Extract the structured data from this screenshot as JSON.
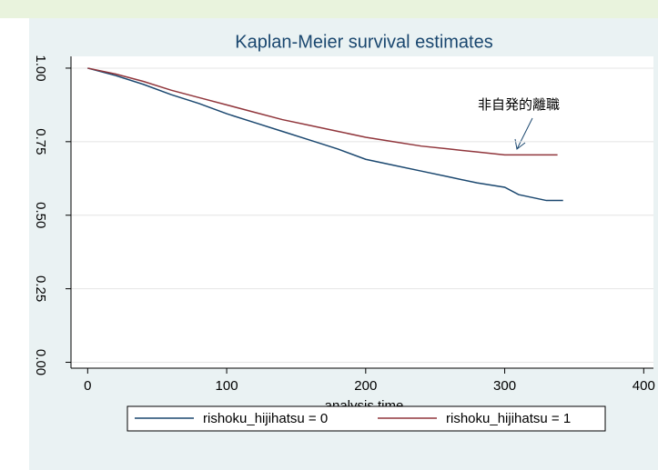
{
  "chart_data": {
    "type": "line",
    "title": "Kaplan-Meier survival estimates",
    "x_label": "analysis time",
    "annotation": "非自発的離職",
    "xlim": [
      -12,
      407
    ],
    "xticks": [
      0,
      100,
      200,
      300,
      400
    ],
    "ylim": [
      -0.02,
      1.04
    ],
    "yticks": [
      {
        "value": 0,
        "label": "0.00"
      },
      {
        "value": 0.25,
        "label": "0.25"
      },
      {
        "value": 0.5,
        "label": "0.50"
      },
      {
        "value": 0.75,
        "label": "0.75"
      },
      {
        "value": 1,
        "label": "1.00"
      }
    ],
    "grid": true,
    "legend": "bottom",
    "series": [
      {
        "name": "rishoku_hijihatsu = 0",
        "color": "#1a476f",
        "x": [
          0,
          20,
          40,
          60,
          80,
          100,
          120,
          140,
          160,
          180,
          200,
          220,
          240,
          260,
          280,
          300,
          310,
          320,
          330,
          342
        ],
        "values": [
          1.0,
          0.975,
          0.945,
          0.91,
          0.88,
          0.845,
          0.815,
          0.785,
          0.755,
          0.725,
          0.69,
          0.67,
          0.65,
          0.63,
          0.61,
          0.595,
          0.57,
          0.56,
          0.55,
          0.55
        ]
      },
      {
        "name": "rishoku_hijihatsu = 1",
        "color": "#90353b",
        "x": [
          0,
          20,
          40,
          60,
          80,
          100,
          120,
          140,
          160,
          180,
          200,
          220,
          240,
          260,
          280,
          300,
          320,
          338
        ],
        "values": [
          1.0,
          0.98,
          0.955,
          0.925,
          0.9,
          0.875,
          0.85,
          0.825,
          0.805,
          0.785,
          0.765,
          0.75,
          0.735,
          0.725,
          0.715,
          0.705,
          0.705,
          0.705
        ]
      }
    ]
  }
}
